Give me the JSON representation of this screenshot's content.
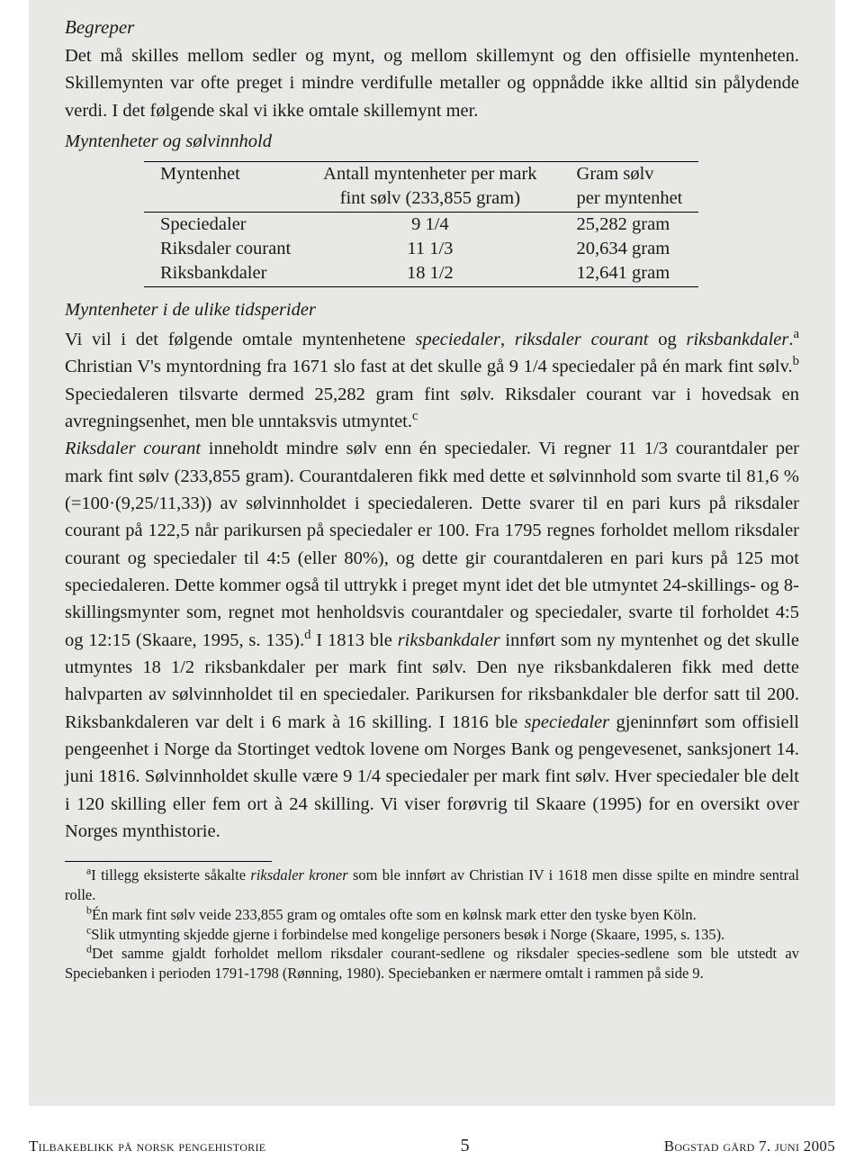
{
  "section_title": "Begreper",
  "intro": "Det må skilles mellom sedler og mynt, og mellom skillemynt og den offisielle myntenheten. Skillemynten var ofte preget i mindre verdifulle metaller og oppnådde ikke alltid sin pålydende verdi. I det følgende skal vi ikke omtale skillemynt mer.",
  "sub1": "Myntenheter og sølvinnhold",
  "table": {
    "head1_c1": "Myntenhet",
    "head1_c2": "Antall myntenheter per mark",
    "head1_c3": "Gram sølv",
    "head2_c2": "fint sølv (233,855 gram)",
    "head2_c3": "per myntenhet",
    "r1c1": "Speciedaler",
    "r1c2": "9 1/4",
    "r1c3": "25,282 gram",
    "r2c1": "Riksdaler courant",
    "r2c2": "11 1/3",
    "r2c3": "20,634 gram",
    "r3c1": "Riksbankdaler",
    "r3c2": "18 1/2",
    "r3c3": "12,641 gram"
  },
  "sub2": "Myntenheter i de ulike tidsperider",
  "body_para1_pre": "Vi vil i det følgende omtale myntenhetene ",
  "body_para1_sp": "speciedaler",
  "body_para1_mid1": ", ",
  "body_para1_rc": "riksdaler courant",
  "body_para1_mid2": " og ",
  "body_para1_rb": "riksbankdaler",
  "body_para1_post": ".",
  "sup_a": "a",
  "body_line2": " Christian V's myntordning fra 1671 slo fast at det skulle gå 9 1/4 speciedaler på én mark fint sølv.",
  "sup_b": "b",
  "body_line3": " Speciedaleren tilsvarte dermed 25,282 gram fint sølv. Riksdaler courant var i hovedsak en avregningsenhet, men ble unntaksvis utmyntet.",
  "sup_c": "c",
  "body_para2_pre": "Riksdaler courant",
  "body_para2_post": " inneholdt mindre sølv enn én speciedaler. Vi regner 11 1/3 courantdaler per mark fint sølv (233,855 gram). Courantdaleren fikk med dette et sølvinnhold som svarte til 81,6 % (=100·(9,25/11,33)) av sølvinnholdet i speciedaleren. Dette svarer til en pari kurs på riksdaler courant på 122,5 når parikursen på speciedaler er 100. Fra 1795 regnes forholdet mellom riksdaler courant og speciedaler til 4:5 (eller 80%), og dette gir courantdaleren en pari kurs på 125 mot speciedaleren. Dette kommer også til uttrykk i preget mynt idet det ble utmyntet 24-skillings- og 8-skillingsmynter som, regnet mot henholdsvis courantdaler og speciedaler, svarte til forholdet 4:5 og 12:15 (Skaare, 1995, s. 135).",
  "sup_d": "d",
  "body_line_d_pre": " I 1813 ble ",
  "body_line_d_ital": "riksbankdaler",
  "body_line_d_post": " innført som ny myntenhet og det skulle utmyntes 18 1/2 riksbankdaler per mark fint sølv. Den nye riksbankdaleren fikk med dette halvparten av sølvinnholdet til en speciedaler. Parikursen for riksbankdaler ble derfor satt til 200. Riksbankdaleren var delt i 6 mark à 16 skilling. I 1816 ble ",
  "body_sp2": "speciedaler",
  "body_final": " gjeninnført som offisiell pengeenhet i Norge da Stortinget vedtok lovene om Norges Bank og pengevesenet, sanksjonert 14. juni 1816. Sølvinnholdet skulle være 9 1/4 speciedaler per mark fint sølv. Hver speciedaler ble delt i 120 skilling eller fem ort à 24 skilling. Vi viser forøvrig til Skaare (1995) for en oversikt over Norges mynthistorie.",
  "fn_a_pre": "I tillegg eksisterte såkalte ",
  "fn_a_ital": "riksdaler kroner",
  "fn_a_post": " som ble innført av Christian IV i 1618 men disse spilte en mindre sentral rolle.",
  "fn_b": "Én mark fint sølv veide 233,855 gram og omtales ofte som en kølnsk mark etter den tyske byen Köln.",
  "fn_c": "Slik utmynting skjedde gjerne i forbindelse med kongelige personers besøk i Norge (Skaare, 1995, s. 135).",
  "fn_d": "Det samme gjaldt forholdet mellom riksdaler courant-sedlene og riksdaler species-sedlene som ble utstedt av Speciebanken i perioden 1791-1798 (Rønning, 1980). Speciebanken er nærmere omtalt i rammen på side 9.",
  "footer_left": "Tilbakeblikk på norsk pengehistorie",
  "footer_center": "5",
  "footer_right": "Bogstad gård 7. juni 2005"
}
